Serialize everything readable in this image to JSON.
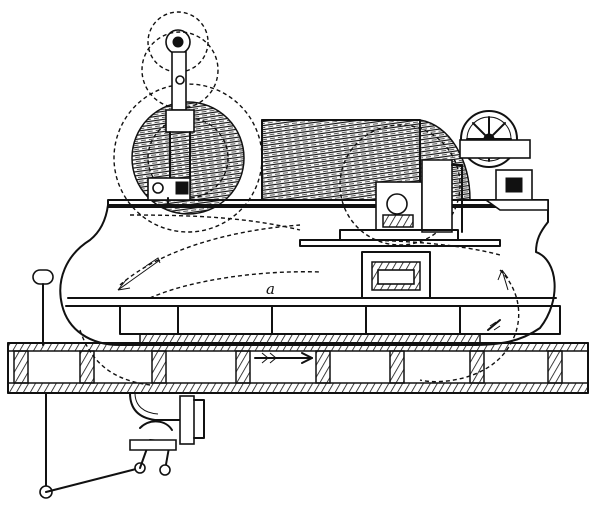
{
  "labels": {
    "a": "a"
  },
  "colors": {
    "ink": "#111111",
    "paper": "#ffffff"
  }
}
